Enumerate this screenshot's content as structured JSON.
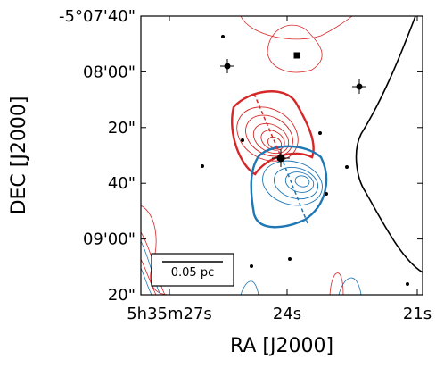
{
  "chart_data": {
    "type": "contour",
    "xlabel": "RA [J2000]",
    "ylabel": "DEC [J2000]",
    "xticks": [
      "5h35m27s",
      "24s",
      "21s"
    ],
    "yticks": [
      "-5°07'40\"",
      "08'00\"",
      "20\"",
      "40\"",
      "09'00\"",
      "20\""
    ],
    "scalebar": "0.05 pc"
  }
}
